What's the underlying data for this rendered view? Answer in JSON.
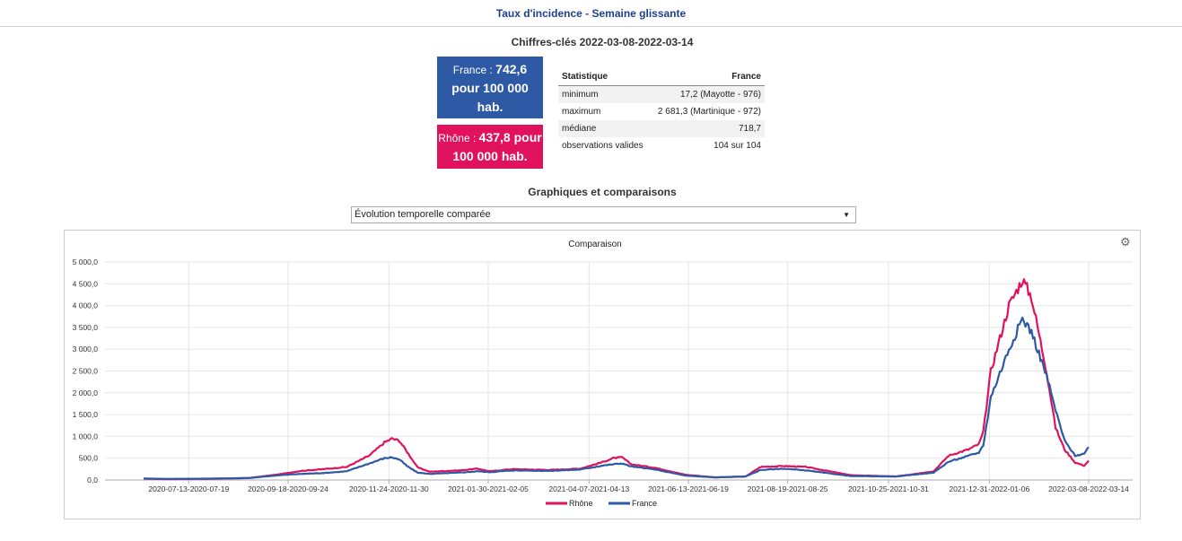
{
  "header": {
    "title": "Taux d'incidence - Semaine glissante"
  },
  "key_figures": {
    "title": "Chiffres-clés 2022-03-08-2022-03-14",
    "france": {
      "prefix": "France : ",
      "value": "742,6",
      "line2": "pour 100 000",
      "line3": "hab.",
      "color": "#2e59a5"
    },
    "rhone": {
      "prefix": "Rhône : ",
      "value": "437,8 pour",
      "line2": "100 000 hab.",
      "color": "#e0125d"
    }
  },
  "stats_table": {
    "headers": [
      "Statistique",
      "France"
    ],
    "rows": [
      [
        "minimum",
        "17,2 (Mayotte - 976)"
      ],
      [
        "maximum",
        "2 681,3 (Martinique - 972)"
      ],
      [
        "médiane",
        "718,7"
      ],
      [
        "observations valides",
        "104 sur 104"
      ]
    ]
  },
  "section": {
    "title": "Graphiques et comparaisons",
    "select_value": "Évolution temporelle comparée"
  },
  "chart_data": {
    "type": "line",
    "title": "Comparaison",
    "y_ticks": [
      "0,0",
      "500,0",
      "1 000,0",
      "1 500,0",
      "2 000,0",
      "2 500,0",
      "3 000,0",
      "3 500,0",
      "4 000,0",
      "4 500,0",
      "5 000,0"
    ],
    "ylim": [
      0,
      5000
    ],
    "x_tick_labels": [
      "2020-07-13-2020-07-19",
      "2020-09-18-2020-09-24",
      "2020-11-24-2020-11-30",
      "2021-01-30-2021-02-05",
      "2021-04-07-2021-04-13",
      "2021-06-13-2021-06-19",
      "2021-08-19-2021-08-25",
      "2021-10-25-2021-10-31",
      "2021-12-31-2022-01-06",
      "2022-03-08-2022-03-14"
    ],
    "x_tick_index": [
      30,
      96,
      163,
      229,
      296,
      362,
      428,
      495,
      562,
      628
    ],
    "n_points": 629,
    "grid": true,
    "legend_position": "bottom",
    "series": [
      {
        "name": "Rhône",
        "color": "#e0125d",
        "knots": [
          [
            0,
            30
          ],
          [
            15,
            20
          ],
          [
            40,
            25
          ],
          [
            70,
            45
          ],
          [
            90,
            130
          ],
          [
            105,
            210
          ],
          [
            120,
            250
          ],
          [
            135,
            300
          ],
          [
            150,
            560
          ],
          [
            160,
            860
          ],
          [
            165,
            950
          ],
          [
            170,
            900
          ],
          [
            175,
            650
          ],
          [
            182,
            290
          ],
          [
            190,
            190
          ],
          [
            210,
            220
          ],
          [
            222,
            260
          ],
          [
            230,
            200
          ],
          [
            245,
            250
          ],
          [
            270,
            230
          ],
          [
            290,
            260
          ],
          [
            305,
            410
          ],
          [
            312,
            500
          ],
          [
            318,
            520
          ],
          [
            324,
            360
          ],
          [
            340,
            280
          ],
          [
            360,
            120
          ],
          [
            380,
            60
          ],
          [
            400,
            80
          ],
          [
            410,
            300
          ],
          [
            425,
            320
          ],
          [
            440,
            300
          ],
          [
            470,
            110
          ],
          [
            500,
            80
          ],
          [
            525,
            200
          ],
          [
            535,
            560
          ],
          [
            548,
            700
          ],
          [
            555,
            820
          ],
          [
            558,
            1100
          ],
          [
            563,
            2500
          ],
          [
            575,
            4000
          ],
          [
            584,
            4600
          ],
          [
            590,
            4200
          ],
          [
            600,
            2500
          ],
          [
            606,
            1200
          ],
          [
            612,
            700
          ],
          [
            619,
            400
          ],
          [
            625,
            330
          ],
          [
            628,
            438
          ]
        ]
      },
      {
        "name": "France",
        "color": "#2e59a5",
        "knots": [
          [
            0,
            35
          ],
          [
            15,
            25
          ],
          [
            40,
            30
          ],
          [
            70,
            45
          ],
          [
            90,
            110
          ],
          [
            105,
            140
          ],
          [
            120,
            160
          ],
          [
            135,
            200
          ],
          [
            150,
            380
          ],
          [
            160,
            500
          ],
          [
            165,
            520
          ],
          [
            170,
            470
          ],
          [
            175,
            320
          ],
          [
            182,
            170
          ],
          [
            190,
            140
          ],
          [
            210,
            170
          ],
          [
            222,
            200
          ],
          [
            230,
            180
          ],
          [
            245,
            220
          ],
          [
            270,
            210
          ],
          [
            290,
            240
          ],
          [
            305,
            330
          ],
          [
            312,
            360
          ],
          [
            318,
            380
          ],
          [
            324,
            310
          ],
          [
            340,
            240
          ],
          [
            360,
            100
          ],
          [
            380,
            60
          ],
          [
            400,
            80
          ],
          [
            410,
            230
          ],
          [
            425,
            260
          ],
          [
            440,
            220
          ],
          [
            470,
            90
          ],
          [
            500,
            80
          ],
          [
            525,
            170
          ],
          [
            535,
            420
          ],
          [
            548,
            550
          ],
          [
            555,
            630
          ],
          [
            558,
            800
          ],
          [
            563,
            1900
          ],
          [
            575,
            3000
          ],
          [
            584,
            3700
          ],
          [
            590,
            3400
          ],
          [
            600,
            2400
          ],
          [
            606,
            1600
          ],
          [
            612,
            900
          ],
          [
            619,
            560
          ],
          [
            625,
            600
          ],
          [
            628,
            743
          ]
        ]
      }
    ]
  }
}
